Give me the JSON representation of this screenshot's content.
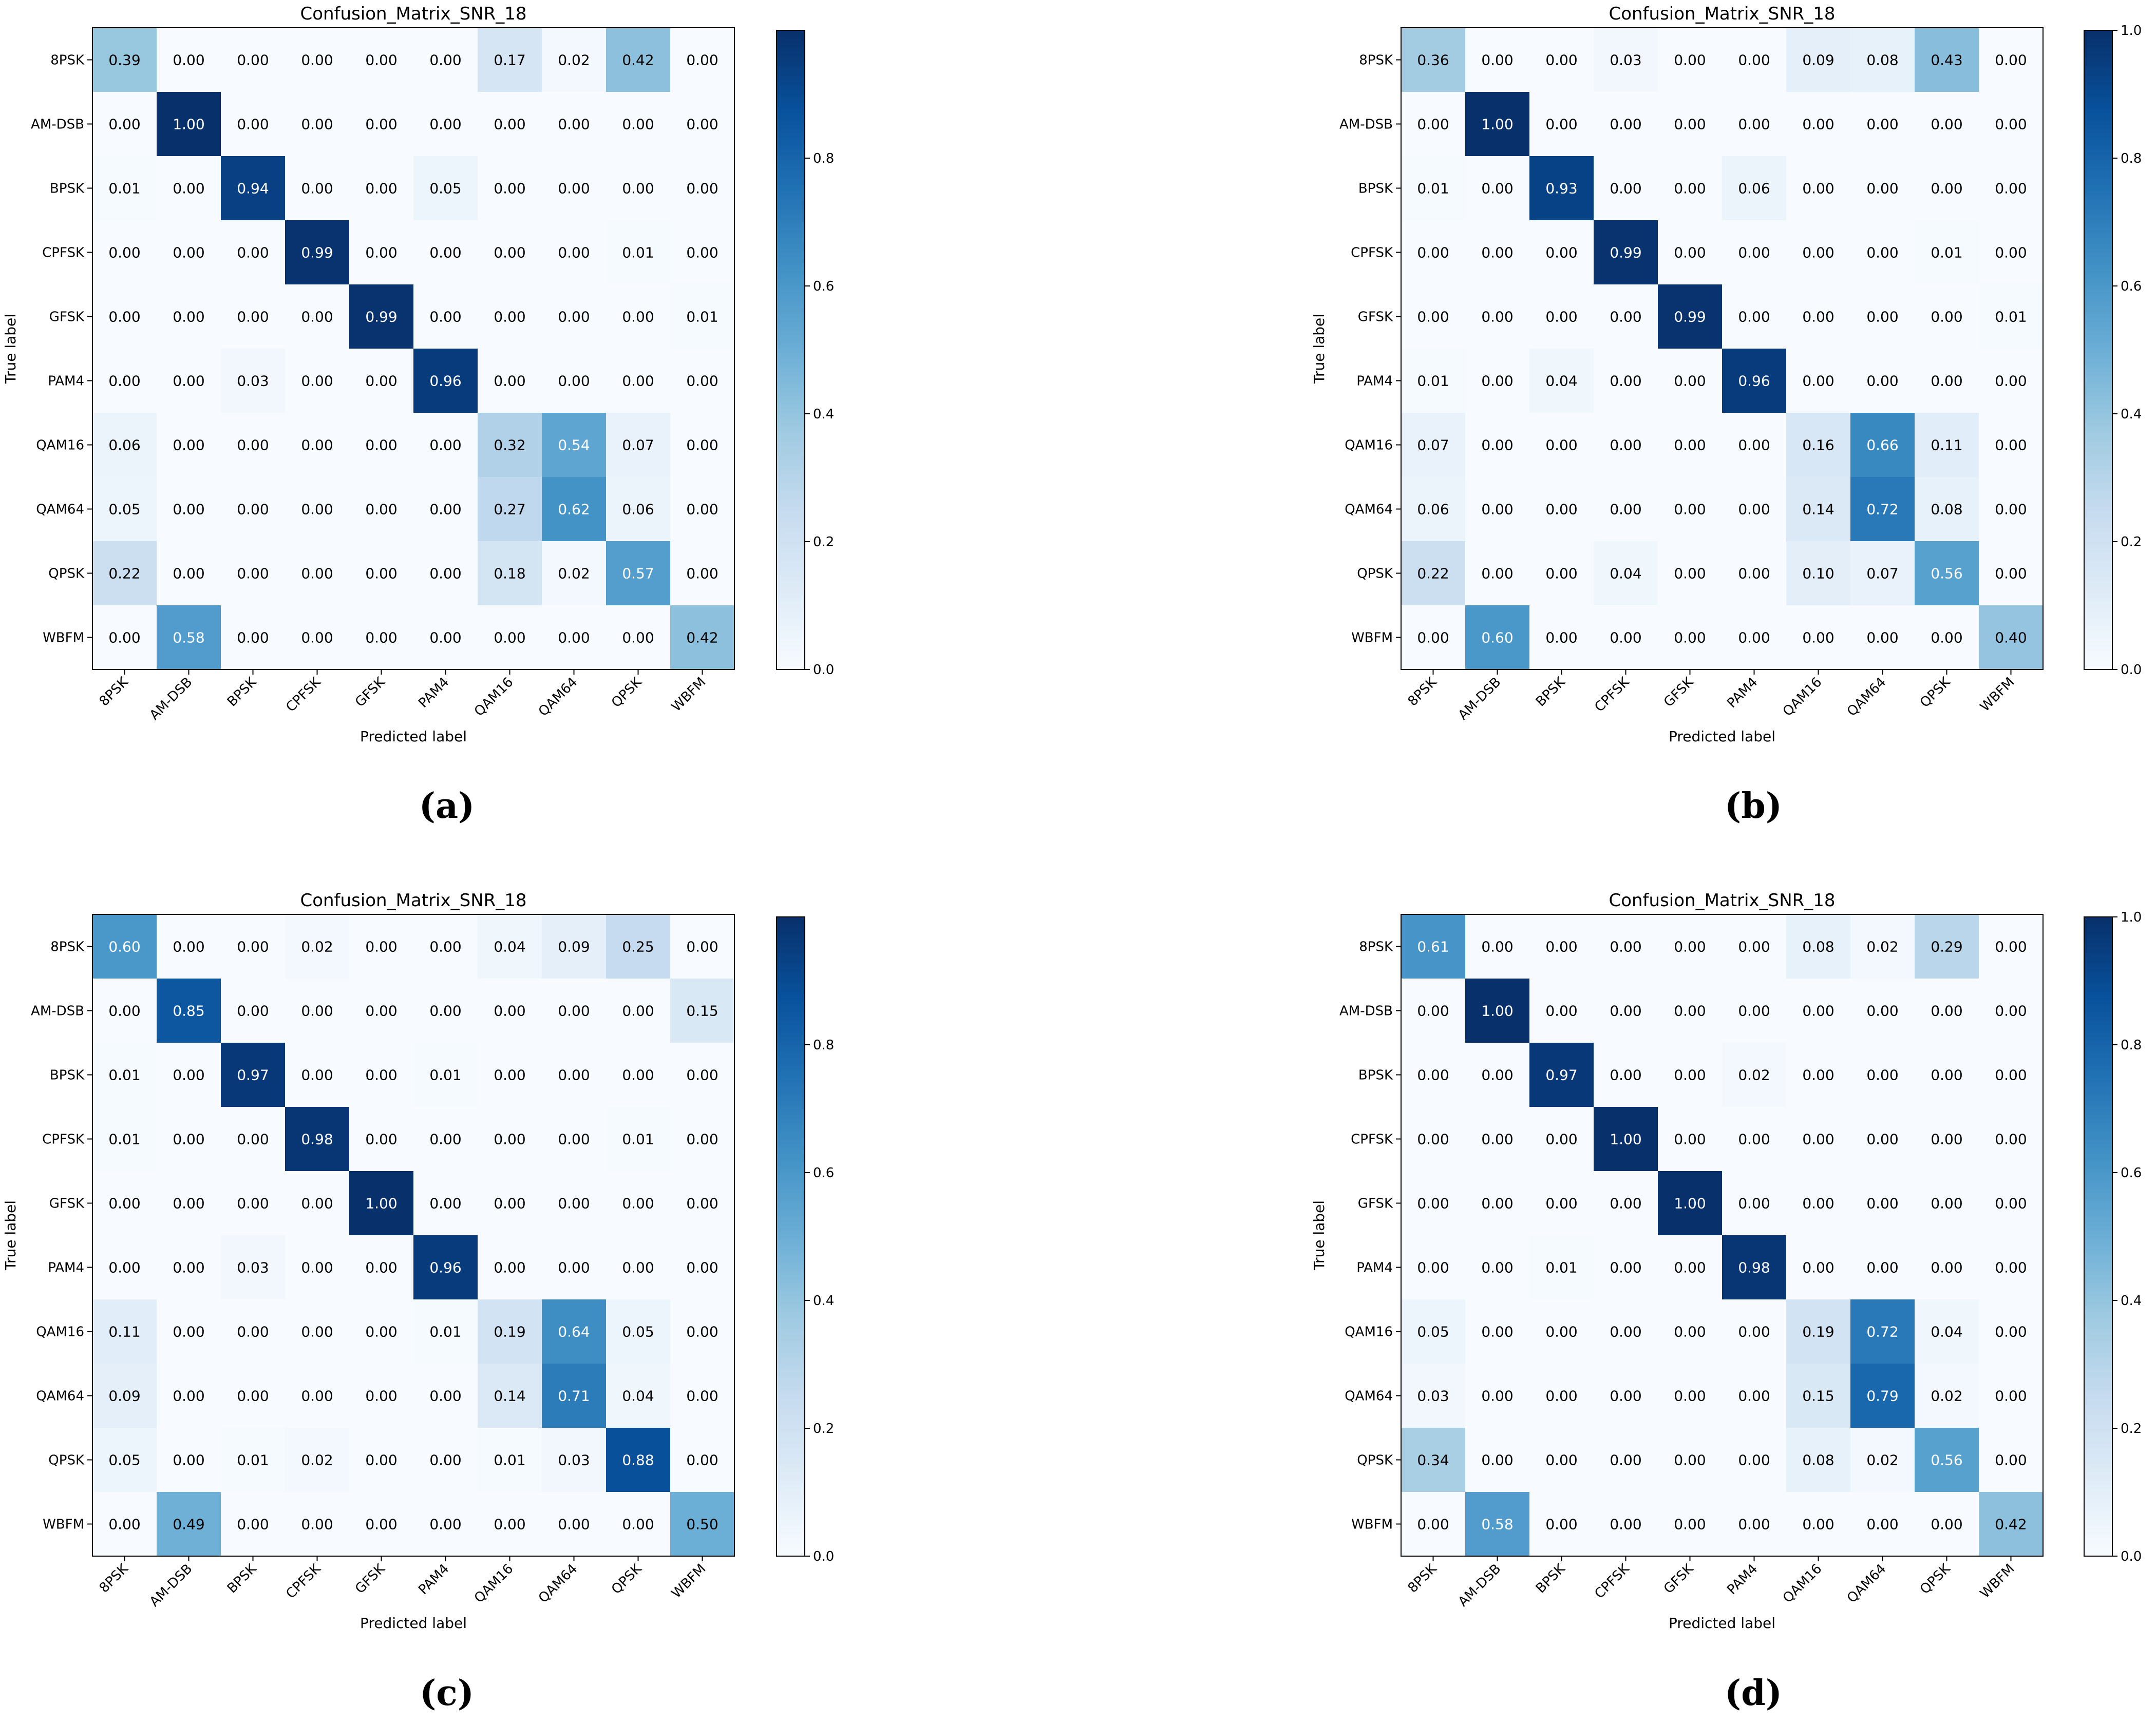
{
  "chart_data": [
    {
      "type": "heatmap",
      "panel_label": "(a)",
      "title": "Confusion_Matrix_SNR_18",
      "xlabel": "Predicted label",
      "ylabel": "True label",
      "classes": [
        "8PSK",
        "AM-DSB",
        "BPSK",
        "CPFSK",
        "GFSK",
        "PAM4",
        "QAM16",
        "QAM64",
        "QPSK",
        "WBFM"
      ],
      "colormap": "Blues",
      "colorbar_ticks": [
        "0.0",
        "0.2",
        "0.4",
        "0.6",
        "0.8"
      ],
      "colorbar_range": [
        0,
        1
      ],
      "matrix": [
        [
          0.39,
          0.0,
          0.0,
          0.0,
          0.0,
          0.0,
          0.17,
          0.02,
          0.42,
          0.0
        ],
        [
          0.0,
          1.0,
          0.0,
          0.0,
          0.0,
          0.0,
          0.0,
          0.0,
          0.0,
          0.0
        ],
        [
          0.01,
          0.0,
          0.94,
          0.0,
          0.0,
          0.05,
          0.0,
          0.0,
          0.0,
          0.0
        ],
        [
          0.0,
          0.0,
          0.0,
          0.99,
          0.0,
          0.0,
          0.0,
          0.0,
          0.01,
          0.0
        ],
        [
          0.0,
          0.0,
          0.0,
          0.0,
          0.99,
          0.0,
          0.0,
          0.0,
          0.0,
          0.01
        ],
        [
          0.0,
          0.0,
          0.03,
          0.0,
          0.0,
          0.96,
          0.0,
          0.0,
          0.0,
          0.0
        ],
        [
          0.06,
          0.0,
          0.0,
          0.0,
          0.0,
          0.0,
          0.32,
          0.54,
          0.07,
          0.0
        ],
        [
          0.05,
          0.0,
          0.0,
          0.0,
          0.0,
          0.0,
          0.27,
          0.62,
          0.06,
          0.0
        ],
        [
          0.22,
          0.0,
          0.0,
          0.0,
          0.0,
          0.0,
          0.18,
          0.02,
          0.57,
          0.0
        ],
        [
          0.0,
          0.58,
          0.0,
          0.0,
          0.0,
          0.0,
          0.0,
          0.0,
          0.0,
          0.42
        ]
      ]
    },
    {
      "type": "heatmap",
      "panel_label": "(b)",
      "title": "Confusion_Matrix_SNR_18",
      "xlabel": "Predicted label",
      "ylabel": "True label",
      "classes": [
        "8PSK",
        "AM-DSB",
        "BPSK",
        "CPFSK",
        "GFSK",
        "PAM4",
        "QAM16",
        "QAM64",
        "QPSK",
        "WBFM"
      ],
      "colormap": "Blues",
      "colorbar_ticks": [
        "0.0",
        "0.2",
        "0.4",
        "0.6",
        "0.8",
        "1.0"
      ],
      "colorbar_range": [
        0,
        1
      ],
      "matrix": [
        [
          0.36,
          0.0,
          0.0,
          0.03,
          0.0,
          0.0,
          0.09,
          0.08,
          0.43,
          0.0
        ],
        [
          0.0,
          1.0,
          0.0,
          0.0,
          0.0,
          0.0,
          0.0,
          0.0,
          0.0,
          0.0
        ],
        [
          0.01,
          0.0,
          0.93,
          0.0,
          0.0,
          0.06,
          0.0,
          0.0,
          0.0,
          0.0
        ],
        [
          0.0,
          0.0,
          0.0,
          0.99,
          0.0,
          0.0,
          0.0,
          0.0,
          0.01,
          0.0
        ],
        [
          0.0,
          0.0,
          0.0,
          0.0,
          0.99,
          0.0,
          0.0,
          0.0,
          0.0,
          0.01
        ],
        [
          0.01,
          0.0,
          0.04,
          0.0,
          0.0,
          0.96,
          0.0,
          0.0,
          0.0,
          0.0
        ],
        [
          0.07,
          0.0,
          0.0,
          0.0,
          0.0,
          0.0,
          0.16,
          0.66,
          0.11,
          0.0
        ],
        [
          0.06,
          0.0,
          0.0,
          0.0,
          0.0,
          0.0,
          0.14,
          0.72,
          0.08,
          0.0
        ],
        [
          0.22,
          0.0,
          0.0,
          0.04,
          0.0,
          0.0,
          0.1,
          0.07,
          0.56,
          0.0
        ],
        [
          0.0,
          0.6,
          0.0,
          0.0,
          0.0,
          0.0,
          0.0,
          0.0,
          0.0,
          0.4
        ]
      ]
    },
    {
      "type": "heatmap",
      "panel_label": "(c)",
      "title": "Confusion_Matrix_SNR_18",
      "xlabel": "Predicted label",
      "ylabel": "True label",
      "classes": [
        "8PSK",
        "AM-DSB",
        "BPSK",
        "CPFSK",
        "GFSK",
        "PAM4",
        "QAM16",
        "QAM64",
        "QPSK",
        "WBFM"
      ],
      "colormap": "Blues",
      "colorbar_ticks": [
        "0.0",
        "0.2",
        "0.4",
        "0.6",
        "0.8"
      ],
      "colorbar_range": [
        0,
        1
      ],
      "matrix": [
        [
          0.6,
          0.0,
          0.0,
          0.02,
          0.0,
          0.0,
          0.04,
          0.09,
          0.25,
          0.0
        ],
        [
          0.0,
          0.85,
          0.0,
          0.0,
          0.0,
          0.0,
          0.0,
          0.0,
          0.0,
          0.15
        ],
        [
          0.01,
          0.0,
          0.97,
          0.0,
          0.0,
          0.01,
          0.0,
          0.0,
          0.0,
          0.0
        ],
        [
          0.01,
          0.0,
          0.0,
          0.98,
          0.0,
          0.0,
          0.0,
          0.0,
          0.01,
          0.0
        ],
        [
          0.0,
          0.0,
          0.0,
          0.0,
          1.0,
          0.0,
          0.0,
          0.0,
          0.0,
          0.0
        ],
        [
          0.0,
          0.0,
          0.03,
          0.0,
          0.0,
          0.96,
          0.0,
          0.0,
          0.0,
          0.0
        ],
        [
          0.11,
          0.0,
          0.0,
          0.0,
          0.0,
          0.01,
          0.19,
          0.64,
          0.05,
          0.0
        ],
        [
          0.09,
          0.0,
          0.0,
          0.0,
          0.0,
          0.0,
          0.14,
          0.71,
          0.04,
          0.0
        ],
        [
          0.05,
          0.0,
          0.01,
          0.02,
          0.0,
          0.0,
          0.01,
          0.03,
          0.88,
          0.0
        ],
        [
          0.0,
          0.49,
          0.0,
          0.0,
          0.0,
          0.0,
          0.0,
          0.0,
          0.0,
          0.5
        ]
      ]
    },
    {
      "type": "heatmap",
      "panel_label": "(d)",
      "title": "Confusion_Matrix_SNR_18",
      "xlabel": "Predicted label",
      "ylabel": "True label",
      "classes": [
        "8PSK",
        "AM-DSB",
        "BPSK",
        "CPFSK",
        "GFSK",
        "PAM4",
        "QAM16",
        "QAM64",
        "QPSK",
        "WBFM"
      ],
      "colormap": "Blues",
      "colorbar_ticks": [
        "0.0",
        "0.2",
        "0.4",
        "0.6",
        "0.8",
        "1.0"
      ],
      "colorbar_range": [
        0,
        1
      ],
      "matrix": [
        [
          0.61,
          0.0,
          0.0,
          0.0,
          0.0,
          0.0,
          0.08,
          0.02,
          0.29,
          0.0
        ],
        [
          0.0,
          1.0,
          0.0,
          0.0,
          0.0,
          0.0,
          0.0,
          0.0,
          0.0,
          0.0
        ],
        [
          0.0,
          0.0,
          0.97,
          0.0,
          0.0,
          0.02,
          0.0,
          0.0,
          0.0,
          0.0
        ],
        [
          0.0,
          0.0,
          0.0,
          1.0,
          0.0,
          0.0,
          0.0,
          0.0,
          0.0,
          0.0
        ],
        [
          0.0,
          0.0,
          0.0,
          0.0,
          1.0,
          0.0,
          0.0,
          0.0,
          0.0,
          0.0
        ],
        [
          0.0,
          0.0,
          0.01,
          0.0,
          0.0,
          0.98,
          0.0,
          0.0,
          0.0,
          0.0
        ],
        [
          0.05,
          0.0,
          0.0,
          0.0,
          0.0,
          0.0,
          0.19,
          0.72,
          0.04,
          0.0
        ],
        [
          0.03,
          0.0,
          0.0,
          0.0,
          0.0,
          0.0,
          0.15,
          0.79,
          0.02,
          0.0
        ],
        [
          0.34,
          0.0,
          0.0,
          0.0,
          0.0,
          0.0,
          0.08,
          0.02,
          0.56,
          0.0
        ],
        [
          0.0,
          0.58,
          0.0,
          0.0,
          0.0,
          0.0,
          0.0,
          0.0,
          0.0,
          0.42
        ]
      ]
    }
  ]
}
